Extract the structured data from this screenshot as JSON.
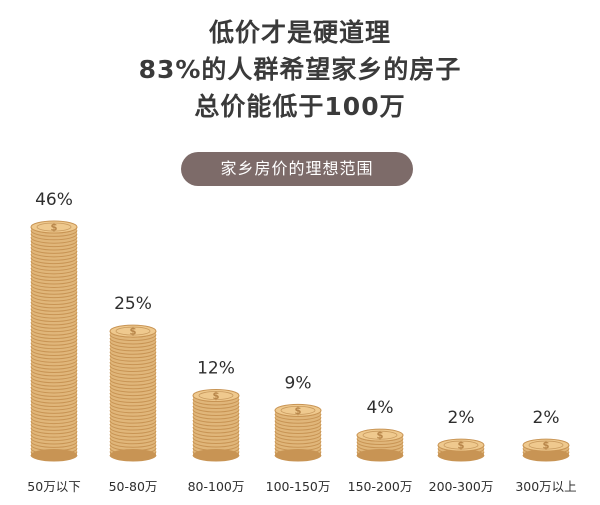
{
  "headline": {
    "lines": [
      "低价才是硬道理",
      "83%的人群希望家乡的房子",
      "总价能低于100万"
    ]
  },
  "chart_data": {
    "type": "bar",
    "title": "家乡房价的理想范围",
    "categories": [
      "50万以下",
      "50-80万",
      "80-100万",
      "100-150万",
      "150-200万",
      "200-300万",
      "300万以上"
    ],
    "values": [
      46,
      25,
      12,
      9,
      4,
      2,
      2
    ],
    "value_suffix": "%",
    "ylim": [
      0,
      46
    ],
    "grid": false,
    "legend": "none",
    "bar_style": "stacked-coins",
    "colors": {
      "coin": "#e0b67a",
      "coin_edge": "#c89454",
      "coin_top": "#efc98e",
      "coin_emboss": "#b8864a",
      "label": "#2e2e2e"
    }
  }
}
